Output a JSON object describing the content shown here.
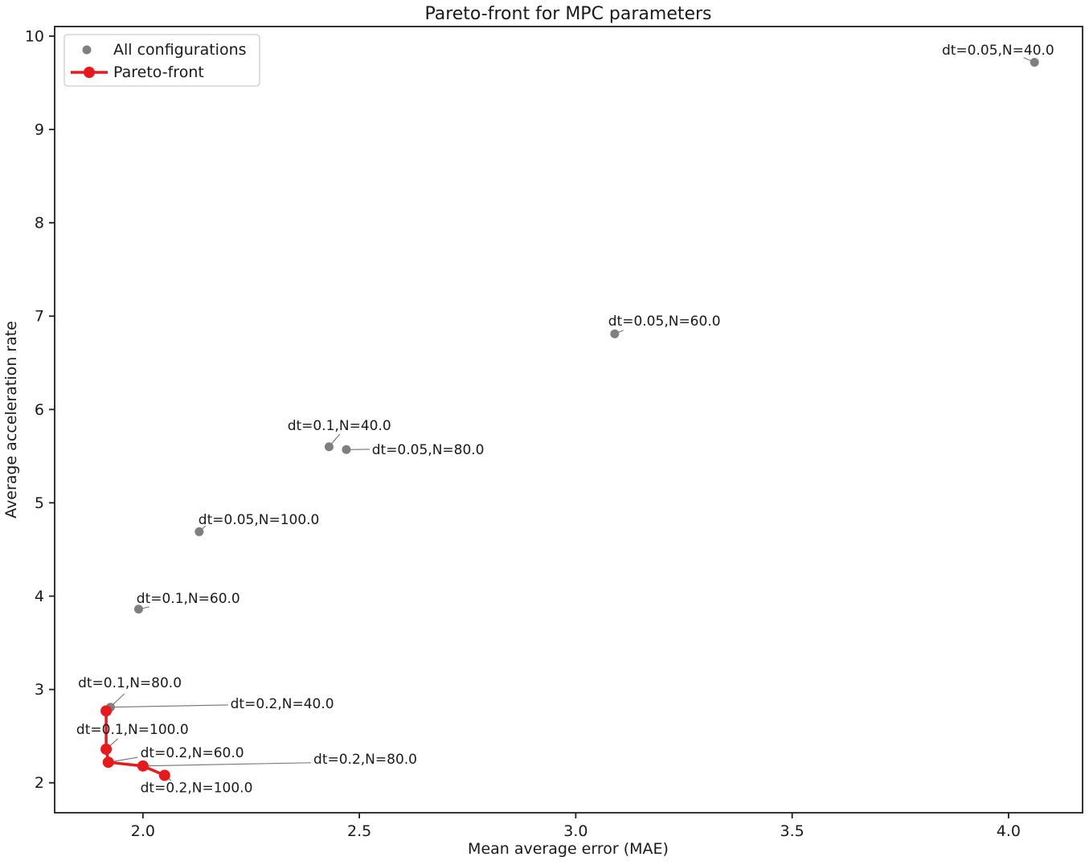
{
  "page": {
    "title": "Pareto-front for MPC parameters"
  },
  "chart_data": {
    "type": "scatter",
    "title": "Pareto-front for MPC parameters",
    "xlabel": "Mean average error (MAE)",
    "ylabel": "Average acceleration rate",
    "xlim": [
      1.796,
      4.171
    ],
    "ylim": [
      1.679,
      10.103
    ],
    "grid": false,
    "x_ticks": [
      {
        "value": 2.0,
        "label": "2.0"
      },
      {
        "value": 2.5,
        "label": "2.5"
      },
      {
        "value": 3.0,
        "label": "3.0"
      },
      {
        "value": 3.5,
        "label": "3.5"
      },
      {
        "value": 4.0,
        "label": "4.0"
      }
    ],
    "y_ticks": [
      {
        "value": 2,
        "label": "2"
      },
      {
        "value": 3,
        "label": "3"
      },
      {
        "value": 4,
        "label": "4"
      },
      {
        "value": 5,
        "label": "5"
      },
      {
        "value": 6,
        "label": "6"
      },
      {
        "value": 7,
        "label": "7"
      },
      {
        "value": 8,
        "label": "8"
      },
      {
        "value": 9,
        "label": "9"
      },
      {
        "value": 10,
        "label": "10"
      }
    ],
    "colors": {
      "all_configurations": "#7f7f7f",
      "pareto_front": "#e8191c",
      "leader_line": "#737373",
      "text": "#1a1a1a"
    },
    "legend": {
      "position": "upper-left",
      "items": [
        {
          "label": "All configurations",
          "marker": "gray-dot"
        },
        {
          "label": "Pareto-front",
          "marker": "red-line-dot"
        }
      ]
    },
    "series": [
      {
        "name": "All configurations",
        "type": "scatter",
        "color": "#7f7f7f",
        "points": [
          {
            "label": "dt=0.05,N=40.0",
            "dt": 0.05,
            "N": 40.0,
            "x": 4.06,
            "y": 9.72
          },
          {
            "label": "dt=0.05,N=60.0",
            "dt": 0.05,
            "N": 60.0,
            "x": 3.09,
            "y": 6.81
          },
          {
            "label": "dt=0.05,N=80.0",
            "dt": 0.05,
            "N": 80.0,
            "x": 2.47,
            "y": 5.57
          },
          {
            "label": "dt=0.05,N=100.0",
            "dt": 0.05,
            "N": 100.0,
            "x": 2.13,
            "y": 4.69
          },
          {
            "label": "dt=0.1,N=40.0",
            "dt": 0.1,
            "N": 40.0,
            "x": 2.43,
            "y": 5.6
          },
          {
            "label": "dt=0.1,N=60.0",
            "dt": 0.1,
            "N": 60.0,
            "x": 1.99,
            "y": 3.86
          },
          {
            "label": "dt=0.1,N=80.0",
            "dt": 0.1,
            "N": 80.0,
            "x": 1.915,
            "y": 2.77
          },
          {
            "label": "dt=0.1,N=100.0",
            "dt": 0.1,
            "N": 100.0,
            "x": 1.915,
            "y": 2.36
          },
          {
            "label": "dt=0.2,N=40.0",
            "dt": 0.2,
            "N": 40.0,
            "x": 1.925,
            "y": 2.81
          },
          {
            "label": "dt=0.2,N=60.0",
            "dt": 0.2,
            "N": 60.0,
            "x": 1.92,
            "y": 2.22
          },
          {
            "label": "dt=0.2,N=80.0",
            "dt": 0.2,
            "N": 80.0,
            "x": 2.0,
            "y": 2.18
          },
          {
            "label": "dt=0.2,N=100.0",
            "dt": 0.2,
            "N": 100.0,
            "x": 2.05,
            "y": 2.08
          }
        ]
      },
      {
        "name": "Pareto-front",
        "type": "line",
        "color": "#e8191c",
        "points": [
          {
            "label": "dt=0.1,N=80.0",
            "dt": 0.1,
            "N": 80.0,
            "x": 1.915,
            "y": 2.77
          },
          {
            "label": "dt=0.1,N=100.0",
            "dt": 0.1,
            "N": 100.0,
            "x": 1.915,
            "y": 2.36
          },
          {
            "label": "dt=0.2,N=60.0",
            "dt": 0.2,
            "N": 60.0,
            "x": 1.92,
            "y": 2.22
          },
          {
            "label": "dt=0.2,N=80.0",
            "dt": 0.2,
            "N": 80.0,
            "x": 2.0,
            "y": 2.18
          },
          {
            "label": "dt=0.2,N=100.0",
            "dt": 0.2,
            "N": 100.0,
            "x": 2.05,
            "y": 2.08
          }
        ]
      }
    ],
    "annotations": [
      {
        "text": "dt=0.05,N=40.0",
        "point": [
          4.06,
          9.72
        ],
        "label_pos": [
          3.846,
          9.854
        ],
        "leader_start": [
          4.035,
          9.77
        ]
      },
      {
        "text": "dt=0.05,N=60.0",
        "point": [
          3.09,
          6.81
        ],
        "label_pos": [
          3.075,
          6.951
        ],
        "leader_start": [
          3.11,
          6.848
        ]
      },
      {
        "text": "dt=0.1,N=40.0",
        "point": [
          2.43,
          5.6
        ],
        "label_pos": [
          2.334,
          5.831
        ],
        "leader_start": [
          2.455,
          5.737
        ]
      },
      {
        "text": "dt=0.05,N=80.0",
        "point": [
          2.47,
          5.57
        ],
        "label_pos": [
          2.529,
          5.573
        ],
        "leader_start": [
          2.524,
          5.573
        ]
      },
      {
        "text": "dt=0.05,N=100.0",
        "point": [
          2.13,
          4.69
        ],
        "label_pos": [
          2.128,
          4.824
        ],
        "leader_start": [
          2.145,
          4.755
        ]
      },
      {
        "text": "dt=0.1,N=60.0",
        "point": [
          1.99,
          3.86
        ],
        "label_pos": [
          1.985,
          3.98
        ],
        "leader_start": [
          2.015,
          3.885
        ]
      },
      {
        "text": "dt=0.1,N=80.0",
        "point": [
          1.915,
          2.77
        ],
        "label_pos": [
          1.85,
          3.075
        ],
        "leader_start": [
          1.957,
          2.954
        ]
      },
      {
        "text": "dt=0.2,N=40.0",
        "point": [
          1.925,
          2.81
        ],
        "label_pos": [
          2.202,
          2.851
        ],
        "leader_start": [
          2.197,
          2.834
        ]
      },
      {
        "text": "dt=0.1,N=100.0",
        "point": [
          1.915,
          2.36
        ],
        "label_pos": [
          1.846,
          2.575
        ],
        "leader_start": [
          1.942,
          2.472
        ]
      },
      {
        "text": "dt=0.2,N=60.0",
        "point": [
          1.92,
          2.22
        ],
        "label_pos": [
          1.994,
          2.325
        ],
        "leader_start": [
          1.988,
          2.273
        ]
      },
      {
        "text": "dt=0.2,N=80.0",
        "point": [
          2.0,
          2.18
        ],
        "label_pos": [
          2.394,
          2.256
        ],
        "leader_start": [
          2.388,
          2.215
        ]
      },
      {
        "text": "dt=0.2,N=100.0",
        "point": [
          2.05,
          2.08
        ],
        "label_pos": [
          1.994,
          1.951
        ],
        "leader_start": [
          2.065,
          2.023
        ]
      }
    ]
  }
}
